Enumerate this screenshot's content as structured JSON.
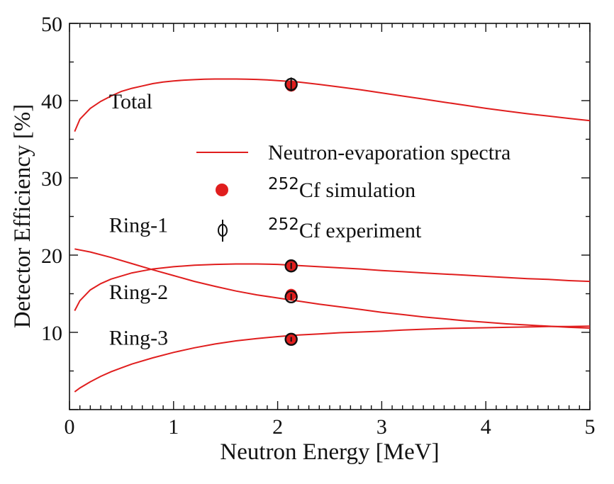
{
  "chart_data": {
    "type": "line",
    "xlabel": "Neutron Energy [MeV]",
    "ylabel": "Detector Efficiency [%]",
    "xlim": [
      0,
      5
    ],
    "ylim": [
      0,
      50
    ],
    "xticks": [
      "0",
      "1",
      "2",
      "3",
      "4",
      "5"
    ],
    "yticks": [
      "10",
      "20",
      "30",
      "40",
      "50"
    ],
    "grid": false,
    "legend_position": "upper-right",
    "legend": {
      "line_label": "Neutron-evaporation spectra",
      "sim_sup": "252",
      "sim_label": "Cf simulation",
      "exp_sup": "252",
      "exp_label": "Cf experiment",
      "line_color": "#e01e1e",
      "marker_color": "#e01e1e",
      "exp_marker_color": "#111111"
    },
    "series": [
      {
        "name": "Total",
        "color": "#e01e1e",
        "x": [
          0.05,
          0.1,
          0.2,
          0.3,
          0.4,
          0.5,
          0.6,
          0.7,
          0.8,
          0.9,
          1.0,
          1.1,
          1.2,
          1.3,
          1.4,
          1.5,
          1.6,
          1.7,
          1.8,
          1.9,
          2.0,
          2.1,
          2.2,
          2.4,
          2.6,
          2.8,
          3.0,
          3.2,
          3.4,
          3.6,
          3.8,
          4.0,
          4.2,
          4.4,
          4.6,
          4.8,
          5.0
        ],
        "y": [
          36.0,
          37.6,
          39.0,
          39.9,
          40.6,
          41.2,
          41.6,
          41.9,
          42.2,
          42.4,
          42.55,
          42.65,
          42.72,
          42.77,
          42.8,
          42.8,
          42.8,
          42.78,
          42.74,
          42.68,
          42.6,
          42.5,
          42.4,
          42.1,
          41.75,
          41.4,
          41.0,
          40.6,
          40.2,
          39.8,
          39.4,
          39.0,
          38.65,
          38.3,
          38.0,
          37.7,
          37.4
        ]
      },
      {
        "name": "Ring-1",
        "color": "#e01e1e",
        "x": [
          0.05,
          0.1,
          0.2,
          0.3,
          0.4,
          0.5,
          0.6,
          0.7,
          0.8,
          0.9,
          1.0,
          1.2,
          1.4,
          1.6,
          1.8,
          2.0,
          2.2,
          2.4,
          2.6,
          2.8,
          3.0,
          3.2,
          3.4,
          3.6,
          3.8,
          4.0,
          4.2,
          4.4,
          4.6,
          4.8,
          5.0
        ],
        "y": [
          12.8,
          14.1,
          15.5,
          16.3,
          16.9,
          17.3,
          17.7,
          17.95,
          18.2,
          18.35,
          18.5,
          18.7,
          18.8,
          18.85,
          18.85,
          18.8,
          18.65,
          18.5,
          18.35,
          18.2,
          18.0,
          17.85,
          17.7,
          17.55,
          17.4,
          17.25,
          17.1,
          16.95,
          16.85,
          16.7,
          16.6
        ]
      },
      {
        "name": "Ring-2",
        "color": "#e01e1e",
        "x": [
          0.05,
          0.2,
          0.4,
          0.6,
          0.8,
          1.0,
          1.2,
          1.4,
          1.6,
          1.8,
          2.0,
          2.2,
          2.4,
          2.6,
          2.8,
          3.0,
          3.2,
          3.4,
          3.6,
          3.8,
          4.0,
          4.2,
          4.4,
          4.6,
          4.8,
          5.0
        ],
        "y": [
          20.8,
          20.4,
          19.7,
          18.9,
          18.1,
          17.35,
          16.6,
          15.95,
          15.35,
          14.85,
          14.45,
          14.05,
          13.65,
          13.3,
          12.95,
          12.6,
          12.3,
          12.0,
          11.75,
          11.5,
          11.3,
          11.1,
          10.95,
          10.8,
          10.65,
          10.55
        ]
      },
      {
        "name": "Ring-3",
        "color": "#e01e1e",
        "x": [
          0.05,
          0.1,
          0.2,
          0.3,
          0.4,
          0.5,
          0.6,
          0.8,
          1.0,
          1.2,
          1.4,
          1.6,
          1.8,
          2.0,
          2.2,
          2.4,
          2.6,
          2.8,
          3.0,
          3.2,
          3.4,
          3.6,
          3.8,
          4.0,
          4.2,
          4.4,
          4.6,
          4.8,
          5.0
        ],
        "y": [
          2.3,
          2.8,
          3.6,
          4.3,
          4.9,
          5.4,
          5.9,
          6.7,
          7.4,
          8.0,
          8.5,
          8.9,
          9.2,
          9.45,
          9.65,
          9.8,
          9.95,
          10.05,
          10.15,
          10.3,
          10.4,
          10.5,
          10.55,
          10.6,
          10.65,
          10.7,
          10.75,
          10.75,
          10.8
        ]
      }
    ],
    "simulation_points": [
      {
        "series": "Total",
        "x": 2.13,
        "y": 41.9
      },
      {
        "series": "Ring-1",
        "x": 2.13,
        "y": 18.7
      },
      {
        "series": "Ring-2",
        "x": 2.13,
        "y": 14.9
      },
      {
        "series": "Ring-3",
        "x": 2.13,
        "y": 9.1
      }
    ],
    "experiment_points": [
      {
        "series": "Total",
        "x": 2.13,
        "y": 42.1,
        "err": 0.9
      },
      {
        "series": "Ring-1",
        "x": 2.13,
        "y": 18.6,
        "err": 0.4
      },
      {
        "series": "Ring-2",
        "x": 2.13,
        "y": 14.6,
        "err": 0.4
      },
      {
        "series": "Ring-3",
        "x": 2.13,
        "y": 9.1,
        "err": 0.3
      }
    ],
    "annotations": [
      {
        "text": "Total",
        "x": 0.38,
        "y": 39.0
      },
      {
        "text": "Ring-1",
        "x": 0.38,
        "y": 23.0
      },
      {
        "text": "Ring-2",
        "x": 0.38,
        "y": 14.3
      },
      {
        "text": "Ring-3",
        "x": 0.38,
        "y": 8.4
      }
    ]
  }
}
